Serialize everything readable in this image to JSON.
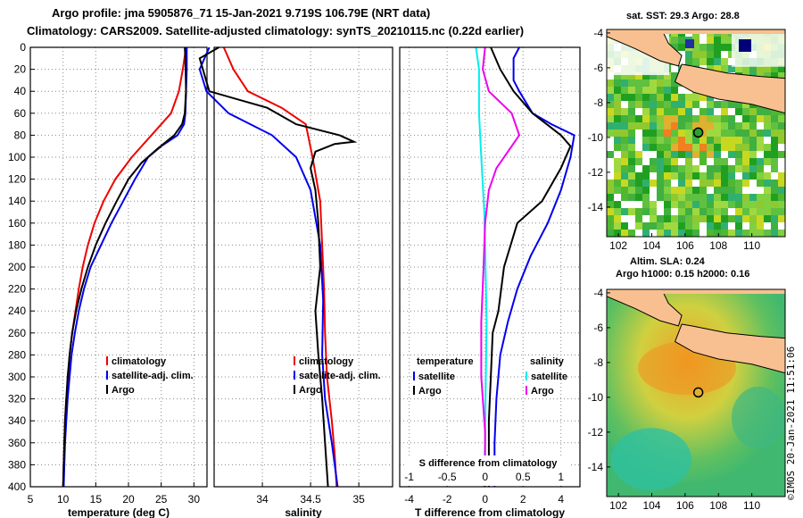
{
  "header": {
    "line1": "Argo profile: jma 5905876_71 15-Jan-2021 9.719S 106.79E (NRT data)",
    "line2": "Climatology: CARS2009. Satellite-adjusted climatology: synTS_20210115.nc (0.22d earlier)"
  },
  "right_panel": {
    "map1_title": "sat. SST: 29.3 Argo: 28.8",
    "map2_title_line1": "Altim. SLA: 0.24",
    "map2_title_line2": "Argo h1000: 0.15 h2000: 0.16",
    "credit": "©IMOS 20-Jan-2021 11:51:06"
  },
  "colors": {
    "climatology": "#ee0000",
    "satellite": "#0000ee",
    "argo": "#000000",
    "salinity_diff": "#ee00ee",
    "temperature_diff": "#00eeee",
    "land": "#f8c090"
  },
  "chart_data": [
    {
      "type": "line",
      "title": "",
      "xlabel": "temperature (deg C)",
      "ylabel": "",
      "xlim": [
        5,
        32
      ],
      "ylim": [
        400,
        0
      ],
      "xticks": [
        5,
        10,
        15,
        20,
        25,
        30
      ],
      "yticks": [
        0,
        20,
        40,
        60,
        80,
        100,
        120,
        140,
        160,
        180,
        200,
        220,
        240,
        260,
        280,
        300,
        320,
        340,
        360,
        380,
        400
      ],
      "legend": [
        "climatology",
        "satellite-adj. clim.",
        "Argo"
      ],
      "series": [
        {
          "name": "climatology",
          "color": "red",
          "points": [
            [
              28.8,
              0
            ],
            [
              28.3,
              20
            ],
            [
              27.7,
              40
            ],
            [
              26.5,
              60
            ],
            [
              23.5,
              80
            ],
            [
              20.5,
              100
            ],
            [
              18.0,
              120
            ],
            [
              16.2,
              140
            ],
            [
              14.8,
              160
            ],
            [
              13.8,
              180
            ],
            [
              13.0,
              200
            ],
            [
              12.4,
              220
            ],
            [
              11.9,
              240
            ],
            [
              11.4,
              260
            ],
            [
              11.0,
              280
            ],
            [
              10.8,
              300
            ],
            [
              10.5,
              320
            ],
            [
              10.3,
              340
            ],
            [
              10.2,
              360
            ],
            [
              10.1,
              380
            ],
            [
              10.0,
              400
            ]
          ]
        },
        {
          "name": "satellite-adj. clim.",
          "color": "blue",
          "points": [
            [
              28.9,
              0
            ],
            [
              28.9,
              20
            ],
            [
              28.8,
              40
            ],
            [
              28.7,
              60
            ],
            [
              28.5,
              70
            ],
            [
              27.5,
              80
            ],
            [
              25.0,
              90
            ],
            [
              23.0,
              100
            ],
            [
              21.0,
              120
            ],
            [
              19.2,
              140
            ],
            [
              17.4,
              160
            ],
            [
              15.8,
              180
            ],
            [
              14.2,
              200
            ],
            [
              13.2,
              220
            ],
            [
              12.4,
              240
            ],
            [
              11.8,
              260
            ],
            [
              11.3,
              280
            ],
            [
              11.0,
              300
            ],
            [
              10.7,
              320
            ],
            [
              10.5,
              340
            ],
            [
              10.3,
              360
            ],
            [
              10.2,
              380
            ],
            [
              10.1,
              400
            ]
          ]
        },
        {
          "name": "Argo",
          "color": "black",
          "points": [
            [
              28.6,
              0
            ],
            [
              28.7,
              10
            ],
            [
              28.8,
              40
            ],
            [
              28.6,
              60
            ],
            [
              28.2,
              70
            ],
            [
              27.0,
              80
            ],
            [
              24.5,
              92
            ],
            [
              22.0,
              105
            ],
            [
              20.0,
              120
            ],
            [
              18.2,
              140
            ],
            [
              16.5,
              160
            ],
            [
              15.0,
              180
            ],
            [
              13.8,
              200
            ],
            [
              12.8,
              220
            ],
            [
              12.0,
              240
            ],
            [
              11.4,
              260
            ],
            [
              11.0,
              280
            ],
            [
              10.7,
              300
            ],
            [
              10.5,
              320
            ],
            [
              10.3,
              340
            ],
            [
              10.2,
              360
            ],
            [
              10.1,
              380
            ],
            [
              10.0,
              400
            ]
          ]
        }
      ]
    },
    {
      "type": "line",
      "title": "",
      "xlabel": "salinity",
      "ylabel": "",
      "xlim": [
        33.5,
        35.35
      ],
      "ylim": [
        400,
        0
      ],
      "xticks": [
        34,
        34.5,
        35
      ],
      "legend": [
        "climatology",
        "satellite-adj. clim.",
        "Argo"
      ],
      "series": [
        {
          "name": "climatology",
          "color": "red",
          "points": [
            [
              33.6,
              0
            ],
            [
              33.7,
              20
            ],
            [
              33.85,
              40
            ],
            [
              34.2,
              55
            ],
            [
              34.45,
              70
            ],
            [
              34.52,
              100
            ],
            [
              34.6,
              140
            ],
            [
              34.62,
              180
            ],
            [
              34.64,
              220
            ],
            [
              34.65,
              260
            ],
            [
              34.67,
              300
            ],
            [
              34.72,
              340
            ],
            [
              34.75,
              370
            ],
            [
              34.77,
              400
            ]
          ]
        },
        {
          "name": "satellite-adj. clim.",
          "color": "blue",
          "points": [
            [
              33.45,
              0
            ],
            [
              33.35,
              20
            ],
            [
              33.42,
              40
            ],
            [
              33.65,
              60
            ],
            [
              34.1,
              80
            ],
            [
              34.35,
              100
            ],
            [
              34.5,
              130
            ],
            [
              34.6,
              180
            ],
            [
              34.63,
              230
            ],
            [
              34.62,
              280
            ],
            [
              34.65,
              320
            ],
            [
              34.72,
              360
            ],
            [
              34.78,
              400
            ]
          ]
        },
        {
          "name": "Argo",
          "color": "black",
          "points": [
            [
              33.55,
              0
            ],
            [
              33.35,
              10
            ],
            [
              33.45,
              40
            ],
            [
              34.05,
              55
            ],
            [
              34.35,
              70
            ],
            [
              34.8,
              80
            ],
            [
              34.95,
              86
            ],
            [
              34.75,
              88
            ],
            [
              34.55,
              95
            ],
            [
              34.5,
              110
            ],
            [
              34.55,
              130
            ],
            [
              34.58,
              160
            ],
            [
              34.6,
              200
            ],
            [
              34.55,
              240
            ],
            [
              34.58,
              280
            ],
            [
              34.62,
              320
            ],
            [
              34.65,
              360
            ],
            [
              34.68,
              400
            ]
          ]
        }
      ]
    },
    {
      "type": "line",
      "title": "",
      "xlabel": "T difference from climatology",
      "x2label": "S difference from climatology",
      "ylabel": "",
      "xlim": [
        -4.5,
        5
      ],
      "x2lim": [
        -1.125,
        1.25
      ],
      "ylim": [
        400,
        0
      ],
      "xticks": [
        -4,
        -2,
        0,
        2,
        4
      ],
      "x2ticks": [
        -1,
        -0.5,
        0,
        0.5,
        1
      ],
      "legend_left_heading": "temperature",
      "legend_left": [
        "satellite",
        "Argo"
      ],
      "legend_right_heading": "salinity",
      "legend_right": [
        "satellite",
        "Argo"
      ],
      "series": [
        {
          "name": "T satellite",
          "color": "blue",
          "points": [
            [
              1.8,
              0
            ],
            [
              1.5,
              10
            ],
            [
              1.5,
              30
            ],
            [
              1.8,
              40
            ],
            [
              2.5,
              60
            ],
            [
              3.5,
              70
            ],
            [
              4.7,
              80
            ],
            [
              4.5,
              100
            ],
            [
              4.0,
              130
            ],
            [
              3.3,
              160
            ],
            [
              2.4,
              190
            ],
            [
              1.7,
              220
            ],
            [
              1.2,
              250
            ],
            [
              0.8,
              280
            ],
            [
              0.6,
              320
            ],
            [
              0.5,
              360
            ],
            [
              0.5,
              400
            ]
          ]
        },
        {
          "name": "T Argo",
          "color": "black",
          "points": [
            [
              0.3,
              0
            ],
            [
              0.8,
              20
            ],
            [
              1.5,
              40
            ],
            [
              2.5,
              60
            ],
            [
              4.0,
              80
            ],
            [
              4.5,
              90
            ],
            [
              4.0,
              110
            ],
            [
              3.0,
              140
            ],
            [
              1.7,
              160
            ],
            [
              1.0,
              200
            ],
            [
              0.7,
              240
            ],
            [
              0.4,
              260
            ],
            [
              0.3,
              300
            ],
            [
              0.2,
              340
            ],
            [
              0.2,
              400
            ]
          ]
        },
        {
          "name": "S satellite",
          "color": "cyan",
          "points": [
            [
              -0.12,
              0
            ],
            [
              -0.08,
              20
            ],
            [
              -0.08,
              60
            ],
            [
              -0.05,
              100
            ],
            [
              -0.01,
              150
            ],
            [
              0.0,
              180
            ],
            [
              0.02,
              250
            ],
            [
              0.01,
              300
            ],
            [
              0.0,
              360
            ],
            [
              -0.02,
              400
            ]
          ]
        },
        {
          "name": "S Argo",
          "color": "magenta",
          "points": [
            [
              0.0,
              0
            ],
            [
              -0.03,
              20
            ],
            [
              0.05,
              40
            ],
            [
              0.35,
              60
            ],
            [
              0.45,
              80
            ],
            [
              0.35,
              90
            ],
            [
              0.15,
              110
            ],
            [
              0.05,
              130
            ],
            [
              0.0,
              160
            ],
            [
              -0.02,
              200
            ],
            [
              -0.05,
              250
            ],
            [
              -0.05,
              300
            ],
            [
              0.0,
              350
            ],
            [
              0.0,
              400
            ]
          ]
        }
      ]
    },
    {
      "type": "heatmap",
      "title": "sat. SST: 29.3 Argo: 28.8",
      "xlim": [
        101.3,
        112
      ],
      "ylim": [
        -15.7,
        -3.8
      ],
      "xticks": [
        102,
        104,
        106,
        108,
        110
      ],
      "yticks": [
        -4,
        -6,
        -8,
        -10,
        -12,
        -14
      ],
      "marker": {
        "lon": 106.79,
        "lat": -9.719
      }
    },
    {
      "type": "heatmap",
      "title": "Altim. SLA: 0.24",
      "subtitle": "Argo h1000: 0.15 h2000: 0.16",
      "xlim": [
        101.3,
        112
      ],
      "ylim": [
        -15.7,
        -3.8
      ],
      "xticks": [
        102,
        104,
        106,
        108,
        110
      ],
      "yticks": [
        -4,
        -6,
        -8,
        -10,
        -12,
        -14
      ],
      "marker": {
        "lon": 106.79,
        "lat": -9.719
      }
    }
  ]
}
